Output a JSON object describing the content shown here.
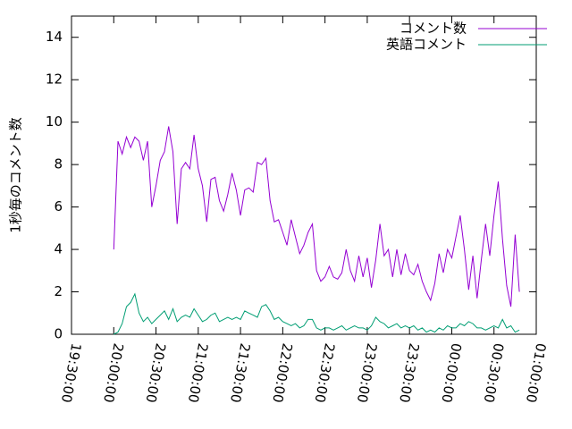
{
  "chart_data": {
    "type": "line",
    "y_label": "1秒毎のコメント数",
    "x": [
      "20:00:00",
      "20:03:00",
      "20:06:00",
      "20:09:00",
      "20:12:00",
      "20:15:00",
      "20:18:00",
      "20:21:00",
      "20:24:00",
      "20:27:00",
      "20:30:00",
      "20:33:00",
      "20:36:00",
      "20:39:00",
      "20:42:00",
      "20:45:00",
      "20:48:00",
      "20:51:00",
      "20:54:00",
      "20:57:00",
      "21:00:00",
      "21:03:00",
      "21:06:00",
      "21:09:00",
      "21:12:00",
      "21:15:00",
      "21:18:00",
      "21:21:00",
      "21:24:00",
      "21:27:00",
      "21:30:00",
      "21:33:00",
      "21:36:00",
      "21:39:00",
      "21:42:00",
      "21:45:00",
      "21:48:00",
      "21:51:00",
      "21:54:00",
      "21:57:00",
      "22:00:00",
      "22:03:00",
      "22:06:00",
      "22:09:00",
      "22:12:00",
      "22:15:00",
      "22:18:00",
      "22:21:00",
      "22:24:00",
      "22:27:00",
      "22:30:00",
      "22:33:00",
      "22:36:00",
      "22:39:00",
      "22:42:00",
      "22:45:00",
      "22:48:00",
      "22:51:00",
      "22:54:00",
      "22:57:00",
      "23:00:00",
      "23:03:00",
      "23:06:00",
      "23:09:00",
      "23:12:00",
      "23:15:00",
      "23:18:00",
      "23:21:00",
      "23:24:00",
      "23:27:00",
      "23:30:00",
      "23:33:00",
      "23:36:00",
      "23:39:00",
      "23:42:00",
      "23:45:00",
      "23:48:00",
      "23:51:00",
      "23:54:00",
      "23:57:00",
      "00:00:00",
      "00:03:00",
      "00:06:00",
      "00:09:00",
      "00:12:00",
      "00:15:00",
      "00:18:00",
      "00:21:00",
      "00:24:00",
      "00:27:00",
      "00:30:00",
      "00:33:00",
      "00:36:00",
      "00:39:00",
      "00:42:00",
      "00:45:00",
      "00:48:00"
    ],
    "series": [
      {
        "name": "コメント数",
        "color": "#9400d3",
        "values": [
          4.0,
          9.1,
          8.5,
          9.3,
          8.8,
          9.3,
          9.1,
          8.2,
          9.1,
          6.0,
          7.0,
          8.2,
          8.6,
          9.8,
          8.6,
          5.2,
          7.8,
          8.1,
          7.8,
          9.4,
          7.8,
          7.0,
          5.3,
          7.3,
          7.4,
          6.3,
          5.8,
          6.6,
          7.6,
          6.8,
          5.6,
          6.8,
          6.9,
          6.7,
          8.1,
          8.0,
          8.3,
          6.3,
          5.3,
          5.4,
          4.8,
          4.2,
          5.4,
          4.6,
          3.8,
          4.2,
          4.8,
          5.2,
          3.0,
          2.5,
          2.7,
          3.2,
          2.7,
          2.6,
          2.9,
          4.0,
          3.0,
          2.5,
          3.7,
          2.7,
          3.6,
          2.2,
          3.5,
          5.2,
          3.7,
          4.0,
          2.7,
          4.0,
          2.8,
          3.8,
          3.0,
          2.8,
          3.3,
          2.5,
          2.0,
          1.6,
          2.4,
          3.8,
          2.9,
          4.0,
          3.6,
          4.6,
          5.6,
          4.0,
          2.1,
          3.7,
          1.7,
          3.5,
          5.2,
          3.7,
          5.6,
          7.2,
          4.5,
          2.3,
          1.3,
          4.7,
          2.0
        ]
      },
      {
        "name": "英語コメント",
        "color": "#009e73",
        "values": [
          0.0,
          0.1,
          0.5,
          1.3,
          1.5,
          1.9,
          1.0,
          0.6,
          0.8,
          0.5,
          0.7,
          0.9,
          1.1,
          0.7,
          1.2,
          0.6,
          0.8,
          0.9,
          0.8,
          1.2,
          0.9,
          0.6,
          0.7,
          0.9,
          1.0,
          0.6,
          0.7,
          0.8,
          0.7,
          0.8,
          0.7,
          1.1,
          1.0,
          0.9,
          0.8,
          1.3,
          1.4,
          1.1,
          0.7,
          0.8,
          0.6,
          0.5,
          0.4,
          0.5,
          0.3,
          0.4,
          0.7,
          0.7,
          0.3,
          0.2,
          0.3,
          0.3,
          0.2,
          0.3,
          0.4,
          0.2,
          0.3,
          0.4,
          0.3,
          0.3,
          0.2,
          0.4,
          0.8,
          0.6,
          0.5,
          0.3,
          0.4,
          0.5,
          0.3,
          0.4,
          0.3,
          0.4,
          0.2,
          0.3,
          0.1,
          0.2,
          0.1,
          0.3,
          0.2,
          0.4,
          0.3,
          0.3,
          0.5,
          0.4,
          0.6,
          0.5,
          0.3,
          0.3,
          0.2,
          0.3,
          0.4,
          0.3,
          0.7,
          0.3,
          0.4,
          0.1,
          0.2
        ]
      }
    ],
    "xlim": [
      "19:30:00",
      "01:00:00"
    ],
    "xticks": [
      "19:30:00",
      "20:00:00",
      "20:30:00",
      "21:00:00",
      "21:30:00",
      "22:00:00",
      "22:30:00",
      "23:00:00",
      "23:30:00",
      "00:00:00",
      "00:30:00",
      "01:00:00"
    ],
    "ylim": [
      0,
      15
    ],
    "yticks": [
      0,
      2,
      4,
      6,
      8,
      10,
      12,
      14
    ],
    "legend": "top-right"
  }
}
